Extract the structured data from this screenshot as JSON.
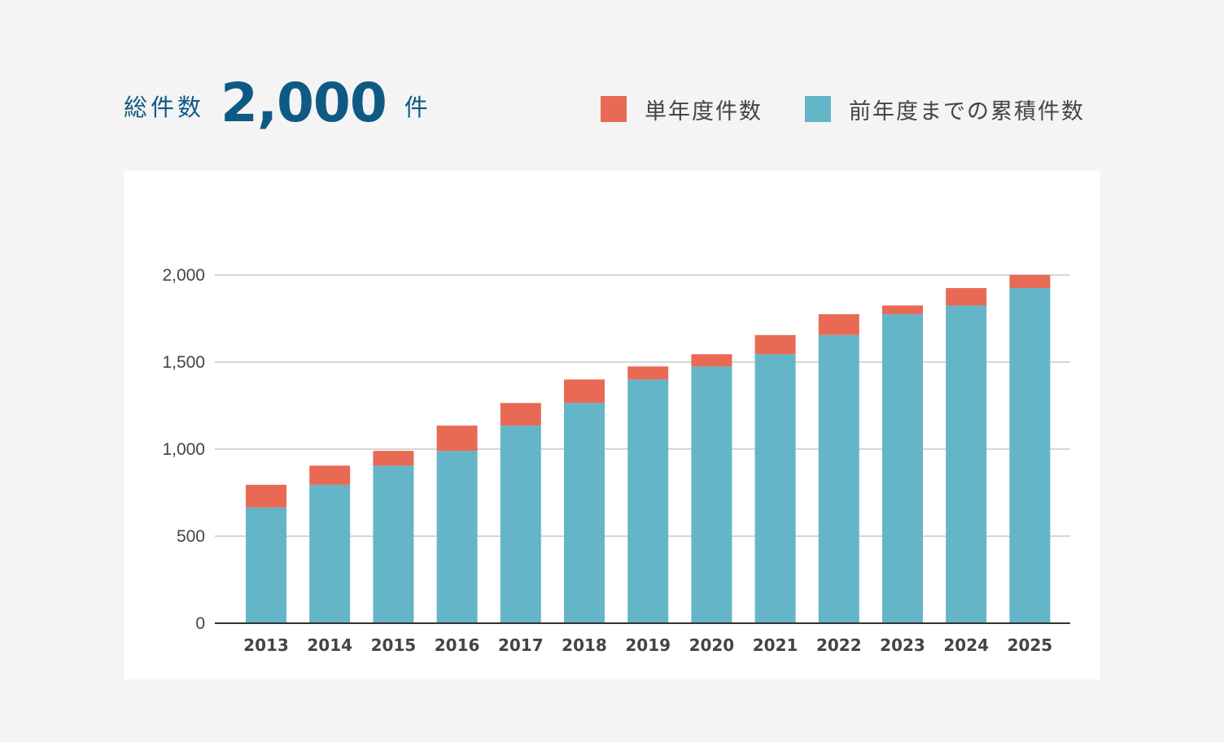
{
  "summary": {
    "label": "総件数",
    "total": "2,000",
    "unit": "件"
  },
  "colors": {
    "new": "#e86a55",
    "cumulative": "#65b5c8",
    "accent": "#0e5a85",
    "grid": "#d6d6d6",
    "axis": "#333333"
  },
  "chart_data": {
    "type": "bar",
    "stacked": true,
    "categories": [
      "2013",
      "2014",
      "2015",
      "2016",
      "2017",
      "2018",
      "2019",
      "2020",
      "2021",
      "2022",
      "2023",
      "2024",
      "2025"
    ],
    "series": [
      {
        "name": "前年度までの累積件数",
        "color": "#65b5c8",
        "values": [
          665,
          795,
          905,
          990,
          1135,
          1265,
          1400,
          1475,
          1545,
          1655,
          1775,
          1825,
          1925
        ]
      },
      {
        "name": "単年度件数",
        "color": "#e86a55",
        "values": [
          130,
          110,
          85,
          145,
          130,
          135,
          75,
          70,
          110,
          120,
          50,
          100,
          75
        ]
      }
    ],
    "legend": [
      "単年度件数",
      "前年度までの累積件数"
    ],
    "yticks": [
      0,
      500,
      1000,
      1500,
      2000
    ],
    "ytick_labels": [
      "0",
      "500",
      "1,000",
      "1,500",
      "2,000"
    ],
    "ylim": [
      0,
      2000
    ],
    "grid": true,
    "legend_position": "top-right"
  }
}
